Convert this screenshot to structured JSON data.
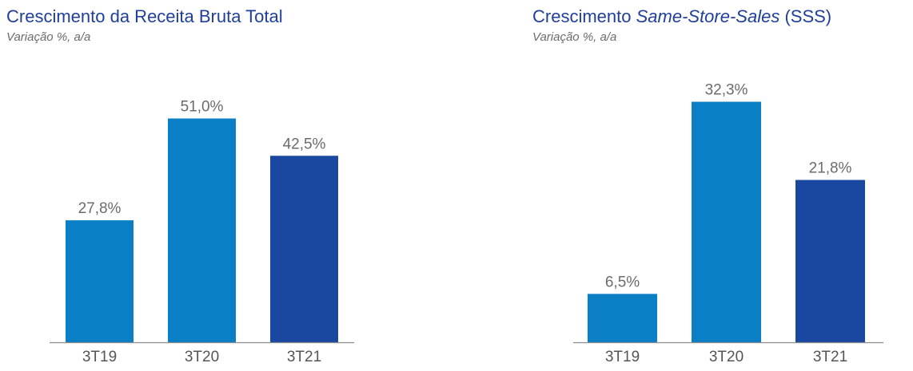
{
  "charts": [
    {
      "title": "Crescimento da Receita Bruta Total",
      "title_main": "",
      "title_italic": "",
      "title_tail": "",
      "subtitle": "Variação %, a/a"
    },
    {
      "title": "",
      "title_main": "Crescimento ",
      "title_italic": "Same-Store-Sales",
      "title_tail": " (SSS)",
      "subtitle": "Variação %, a/a"
    }
  ],
  "chart_data": [
    {
      "type": "bar",
      "title": "Crescimento da Receita Bruta Total",
      "subtitle": "Variação %, a/a",
      "categories": [
        "3T19",
        "3T20",
        "3T21"
      ],
      "values": [
        27.8,
        51.0,
        42.5
      ],
      "value_labels": [
        "27,8%",
        "51,0%",
        "42,5%"
      ],
      "colors": [
        "#0a7fc6",
        "#0a7fc6",
        "#1a47a0"
      ],
      "ylim": [
        0,
        60
      ],
      "grid": false,
      "legend": "none"
    },
    {
      "type": "bar",
      "title": "Crescimento Same-Store-Sales (SSS)",
      "subtitle": "Variação %, a/a",
      "categories": [
        "3T19",
        "3T20",
        "3T21"
      ],
      "values": [
        6.5,
        32.3,
        21.8
      ],
      "value_labels": [
        "6,5%",
        "32,3%",
        "21,8%"
      ],
      "colors": [
        "#0a7fc6",
        "#0a7fc6",
        "#1a47a0"
      ],
      "ylim": [
        0,
        37.5
      ],
      "grid": false,
      "legend": "none"
    }
  ]
}
